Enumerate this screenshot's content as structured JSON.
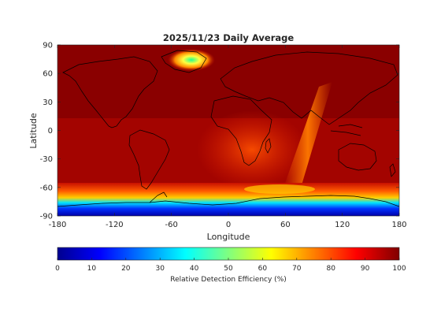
{
  "title": "2025/11/23 Daily Average",
  "xlabel": "Longitude",
  "ylabel": "Latitude",
  "x_ticks": [
    "-180",
    "-120",
    "-60",
    "0",
    "60",
    "120",
    "180"
  ],
  "y_ticks": [
    "90",
    "60",
    "30",
    "0",
    "-30",
    "-60",
    "-90"
  ],
  "colorbar": {
    "label": "Relative Detection Efficiency (%)",
    "ticks": [
      "0",
      "10",
      "20",
      "30",
      "40",
      "50",
      "60",
      "70",
      "80",
      "90",
      "100"
    ],
    "range": [
      0,
      100
    ],
    "colormap": "jet"
  },
  "map": {
    "projection": "equirectangular",
    "lon_range": [
      -180,
      180
    ],
    "lat_range": [
      -90,
      90
    ],
    "background_value_percent": 96,
    "colors": {
      "background": "#8a0000",
      "high": "#b30000",
      "mid_red": "#dd1a00",
      "orange": "#ff6400",
      "yellow": "#ffd000",
      "cyan": "#00e5ff",
      "blue": "#0028ff",
      "dark_blue": "#0000a0",
      "coastline": "#000000"
    }
  }
}
